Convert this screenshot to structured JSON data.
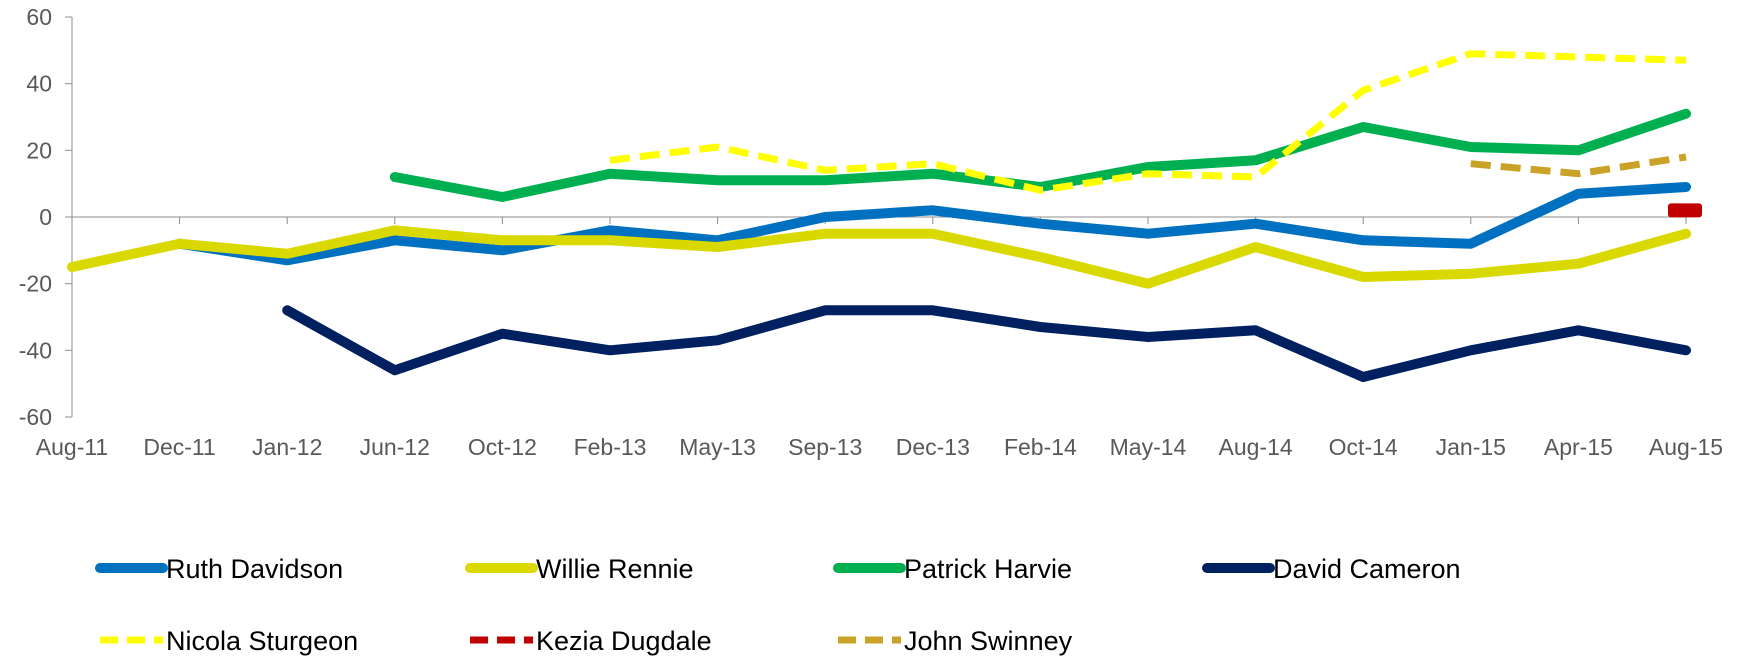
{
  "chart_data": {
    "type": "line",
    "categories": [
      "Aug-11",
      "Dec-11",
      "Jan-12",
      "Jun-12",
      "Oct-12",
      "Feb-13",
      "May-13",
      "Sep-13",
      "Dec-13",
      "Feb-14",
      "May-14",
      "Aug-14",
      "Oct-14",
      "Jan-15",
      "Apr-15",
      "Aug-15"
    ],
    "yticks": [
      "60",
      "40",
      "20",
      "0",
      "-20",
      "-40",
      "-60"
    ],
    "ylim": [
      -60,
      60
    ],
    "grid": false,
    "legend_position": "bottom",
    "series": [
      {
        "name": "Ruth Davidson",
        "color": "#0070C0",
        "style": "solid",
        "values": [
          null,
          -8,
          -13,
          -7,
          -10,
          -4,
          -7,
          0,
          2,
          -2,
          -5,
          -2,
          -7,
          -8,
          7,
          9
        ]
      },
      {
        "name": "Willie Rennie",
        "color": "#D9D900",
        "style": "solid",
        "values": [
          -15,
          -8,
          -11,
          -4,
          -7,
          -7,
          -9,
          -5,
          -5,
          -12,
          -20,
          -9,
          -18,
          -17,
          -14,
          -5
        ]
      },
      {
        "name": "Patrick Harvie",
        "color": "#00B050",
        "style": "solid",
        "values": [
          null,
          null,
          null,
          12,
          6,
          13,
          11,
          11,
          13,
          9,
          15,
          17,
          27,
          21,
          20,
          31
        ]
      },
      {
        "name": "David Cameron",
        "color": "#002060",
        "style": "solid",
        "values": [
          null,
          null,
          -28,
          -46,
          -35,
          -40,
          -37,
          -28,
          -28,
          -33,
          -36,
          -34,
          -48,
          -40,
          -34,
          -40
        ]
      },
      {
        "name": "Nicola Sturgeon",
        "color": "#FFFF00",
        "style": "dash",
        "values": [
          null,
          null,
          null,
          null,
          null,
          17,
          21,
          14,
          16,
          8,
          13,
          12,
          38,
          49,
          48,
          47
        ]
      },
      {
        "name": "Kezia Dugdale",
        "color": "#C00000",
        "style": "dash",
        "values": [
          null,
          null,
          null,
          null,
          null,
          null,
          null,
          null,
          null,
          null,
          null,
          null,
          null,
          null,
          null,
          2
        ]
      },
      {
        "name": "John Swinney",
        "color": "#C9A227",
        "style": "dash",
        "values": [
          null,
          null,
          null,
          null,
          null,
          null,
          null,
          null,
          null,
          null,
          null,
          null,
          null,
          16,
          13,
          18
        ]
      }
    ]
  }
}
